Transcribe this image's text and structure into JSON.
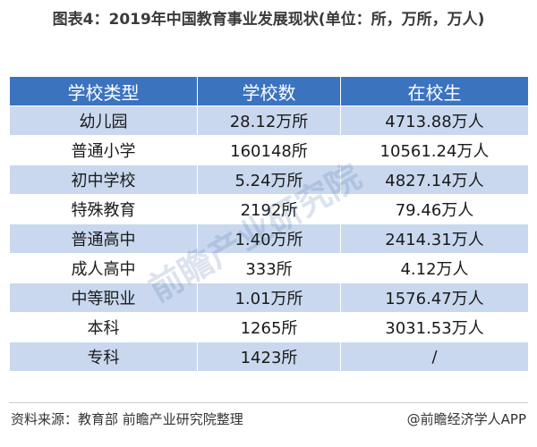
{
  "title": "图表4：2019年中国教育事业发展现状(单位：所，万所，万人)",
  "table": {
    "headers": [
      "学校类型",
      "学校数",
      "在校生"
    ],
    "rows": [
      [
        "幼儿园",
        "28.12万所",
        "4713.88万人"
      ],
      [
        "普通小学",
        "160148所",
        "10561.24万人"
      ],
      [
        "初中学校",
        "5.24万所",
        "4827.14万人"
      ],
      [
        "特殊教育",
        "2192所",
        "79.46万人"
      ],
      [
        "普通高中",
        "1.40万所",
        "2414.31万人"
      ],
      [
        "成人高中",
        "333所",
        "4.12万人"
      ],
      [
        "中等职业",
        "1.01万所",
        "1576.47万人"
      ],
      [
        "本科",
        "1265所",
        "3031.53万人"
      ],
      [
        "专科",
        "1423所",
        "/"
      ]
    ]
  },
  "watermark": "前瞻产业研究院",
  "footer": {
    "source": "资料来源：教育部 前瞻产业研究院整理",
    "credit": "@前瞻经济学人APP"
  },
  "colors": {
    "header_bg": "#3b73bf",
    "band_bg": "#c9d8ee"
  }
}
